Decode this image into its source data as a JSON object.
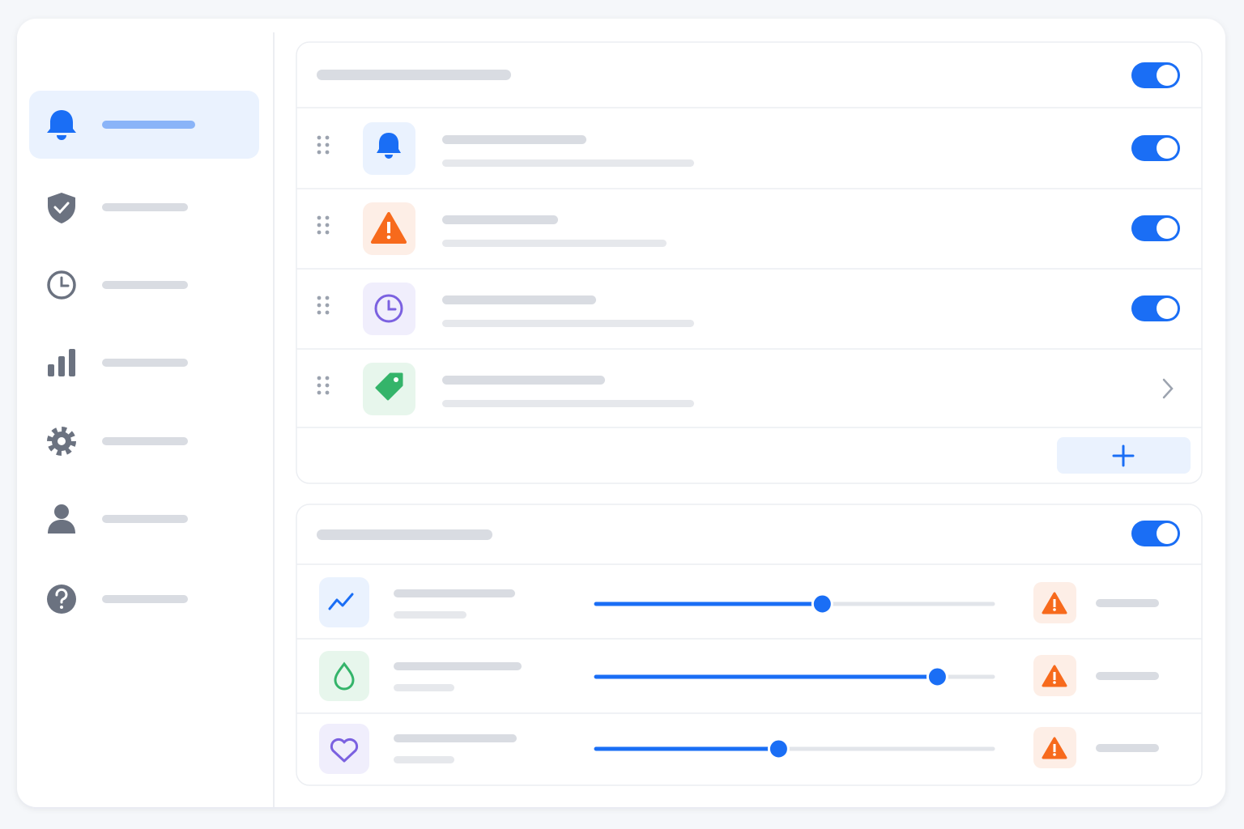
{
  "toggles": [
    true,
    true,
    true,
    true,
    true
  ],
  "sliders": [
    57,
    86,
    46
  ]
}
